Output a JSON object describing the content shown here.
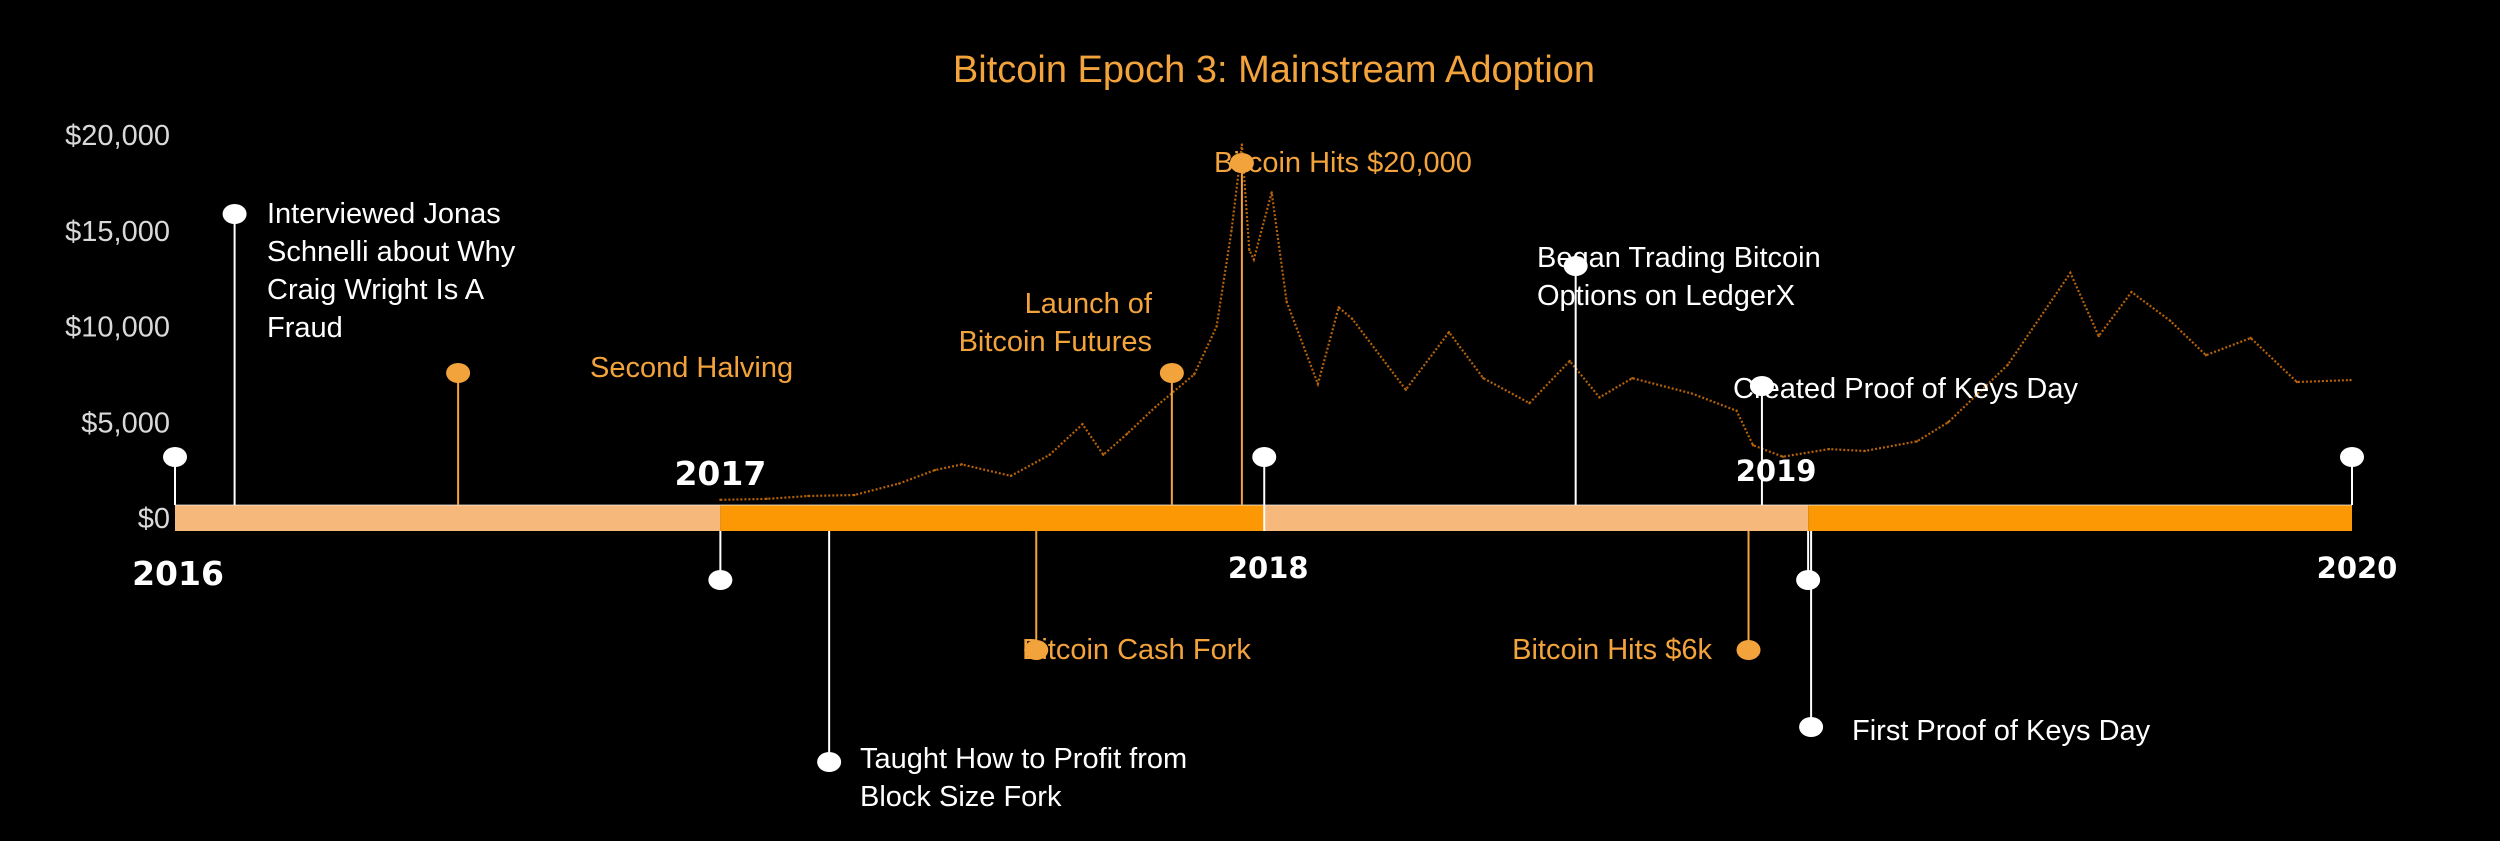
{
  "colors": {
    "background": "#000000",
    "accent": "#f3a33c",
    "bar_light": "#f6b87b",
    "bar_dark": "#fb9804",
    "price_line": "#b5620a",
    "white": "#ffffff",
    "tick_text": "#d9d9d9"
  },
  "chart_data": {
    "type": "line",
    "title": "Bitcoin Epoch 3: Mainstream Adoption",
    "x_range": [
      "2016-01-01",
      "2020-01-01"
    ],
    "ylim": [
      0,
      20000
    ],
    "y_ticks": [
      {
        "value": 0,
        "label": "$0"
      },
      {
        "value": 5000,
        "label": "$5,000"
      },
      {
        "value": 10000,
        "label": "$10,000"
      },
      {
        "value": 15000,
        "label": "$15,000"
      },
      {
        "value": 20000,
        "label": "$20,000"
      }
    ],
    "years": [
      {
        "label": "2016",
        "x": "2016-01-01"
      },
      {
        "label": "2017",
        "x": "2017-01-01"
      },
      {
        "label": "2018",
        "x": "2018-01-01"
      },
      {
        "label": "2019",
        "x": "2019-01-01"
      },
      {
        "label": "2020",
        "x": "2020-01-01"
      }
    ],
    "series": [
      {
        "x": [
          "2017-01-01",
          "2017-02-01",
          "2017-03-01",
          "2017-04-01",
          "2017-05-01",
          "2017-05-25",
          "2017-06-12",
          "2017-07-15",
          "2017-08-10",
          "2017-09-01",
          "2017-09-15",
          "2017-10-01",
          "2017-10-20",
          "2017-11-15",
          "2017-11-30",
          "2017-12-10",
          "2017-12-17",
          "2017-12-22",
          "2017-12-25",
          "2018-01-06",
          "2018-01-16",
          "2018-02-06",
          "2018-02-20",
          "2018-03-01",
          "2018-04-06",
          "2018-05-05",
          "2018-05-28",
          "2018-06-28",
          "2018-07-25",
          "2018-08-14",
          "2018-09-05",
          "2018-10-15",
          "2018-11-14",
          "2018-11-25",
          "2018-12-15",
          "2019-01-15",
          "2019-02-08",
          "2019-03-15",
          "2019-04-05",
          "2019-05-15",
          "2019-06-26",
          "2019-07-15",
          "2019-08-06",
          "2019-09-01",
          "2019-09-25",
          "2019-10-25",
          "2019-11-25",
          "2019-12-31"
        ],
        "values": [
          950,
          1000,
          1150,
          1200,
          1800,
          2500,
          2800,
          2200,
          3300,
          4900,
          3300,
          4400,
          5800,
          7500,
          10000,
          15000,
          19500,
          14000,
          13500,
          17000,
          11300,
          7000,
          11000,
          10400,
          6700,
          9700,
          7300,
          6000,
          8200,
          6300,
          7300,
          6500,
          5600,
          3800,
          3200,
          3600,
          3500,
          4000,
          5000,
          8000,
          12800,
          9500,
          11800,
          10300,
          8500,
          9400,
          7100,
          7200
        ]
      }
    ],
    "events": [
      {
        "label": "Interviewed Jonas Schnelli about Why Craig Wright Is A Fraud",
        "x": "2016-02-10",
        "lines": [
          "Interviewed Jonas",
          "Schnelli about Why",
          "Craig Wright Is A",
          "Fraud"
        ],
        "color": "white",
        "side": "above"
      },
      {
        "label": "Second Halving",
        "x": "2016-07-09",
        "lines": [
          "Second Halving"
        ],
        "color": "orange",
        "side": "above"
      },
      {
        "label": "Taught How to Profit from Block Size Fork",
        "x": "2017-03-15",
        "lines": [
          "Taught How to Profit from",
          "Block Size Fork"
        ],
        "color": "white",
        "side": "below"
      },
      {
        "label": "Bitcoin Cash Fork",
        "x": "2017-08-01",
        "lines": [
          "Bitcoin Cash Fork"
        ],
        "color": "orange",
        "side": "below"
      },
      {
        "label": "Launch of Bitcoin Futures",
        "x": "2017-10-31",
        "lines": [
          "Launch of",
          "Bitcoin Futures"
        ],
        "color": "orange",
        "side": "above"
      },
      {
        "label": "Bitcoin Hits $20,000",
        "x": "2017-12-17",
        "lines": [
          "Bitcoin Hits $20,000"
        ],
        "color": "orange",
        "side": "above"
      },
      {
        "label": "Began Trading Bitcoin Options on LedgerX",
        "x": "2018-07-29",
        "lines": [
          "Began Trading Bitcoin",
          "Options on LedgerX"
        ],
        "color": "white",
        "side": "above"
      },
      {
        "label": "Created Proof of Keys Day",
        "x": "2018-12-01",
        "lines": [
          "Created Proof of Keys Day"
        ],
        "color": "white",
        "side": "above"
      },
      {
        "label": "Bitcoin Hits $6k",
        "x": "2018-11-22",
        "lines": [
          "Bitcoin Hits $6k"
        ],
        "color": "orange",
        "side": "below"
      },
      {
        "label": "First Proof of Keys Day",
        "x": "2019-01-03",
        "lines": [
          "First Proof of Keys Day"
        ],
        "color": "white",
        "side": "below"
      }
    ]
  }
}
